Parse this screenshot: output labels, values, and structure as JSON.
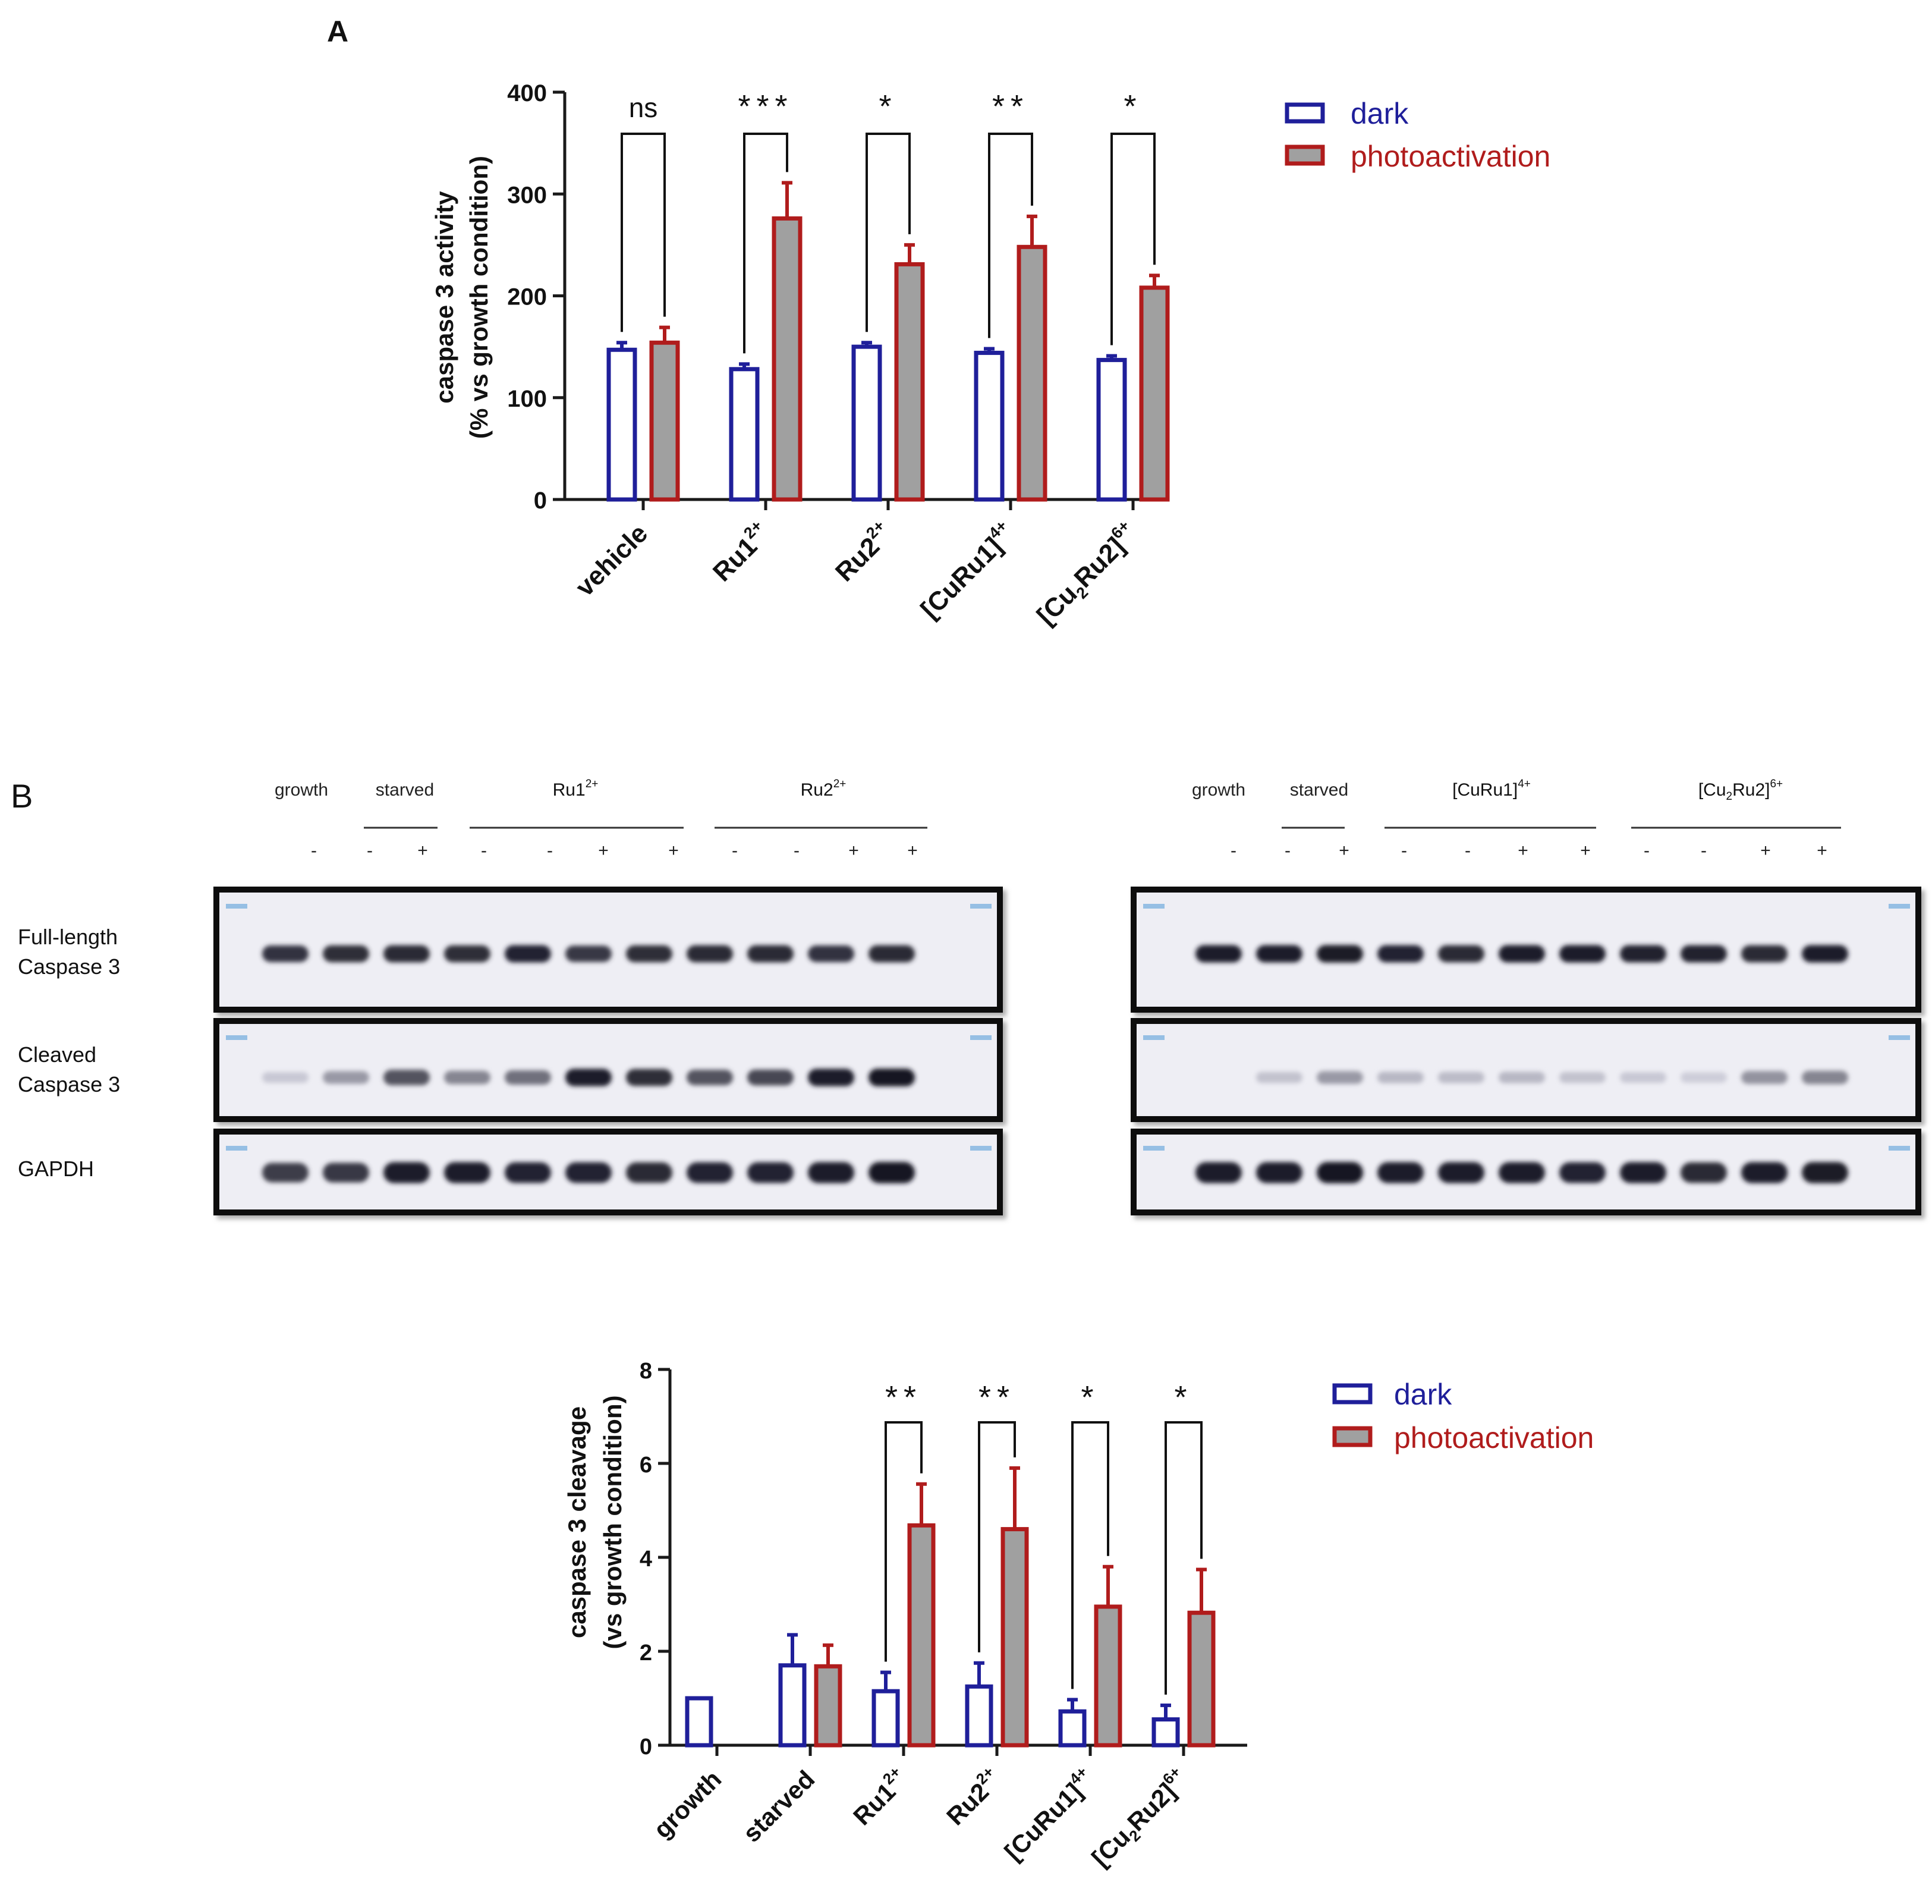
{
  "panel_a_label": "A",
  "panel_b_label": "B",
  "colors": {
    "dark": "#1f1f9a",
    "photo": "#b01c1c",
    "photo_fill": "#a0a0a0",
    "dark_text": "#1f1f9a",
    "photo_text": "#b01c1c",
    "axis": "#1a1a1a"
  },
  "legend": {
    "dark": "dark",
    "photo": "photoactivation"
  },
  "chart_data": [
    {
      "type": "bar",
      "ylabel_line1": "caspase 3 activity",
      "ylabel_line2": "(% vs growth condition)",
      "ylim": [
        0,
        400
      ],
      "yticks": [
        "0",
        "100",
        "200",
        "300",
        "400"
      ],
      "categories": [
        {
          "base": "vehicle",
          "sub": "",
          "sup": "",
          "after": ""
        },
        {
          "base": "Ru1",
          "sub": "",
          "sup": "2+",
          "after": ""
        },
        {
          "base": "Ru2",
          "sub": "",
          "sup": "2+",
          "after": ""
        },
        {
          "base": "[CuRu1]",
          "sub": "",
          "sup": "4+",
          "after": ""
        },
        {
          "base": "[Cu",
          "sub": "2",
          "sup": "6+",
          "after": "Ru2]"
        }
      ],
      "series": [
        {
          "name": "dark",
          "values": [
            147,
            128,
            150,
            144,
            137
          ],
          "errors": [
            7,
            5,
            4,
            4,
            4
          ]
        },
        {
          "name": "photoactivation",
          "values": [
            154,
            276,
            231,
            248,
            208
          ],
          "errors": [
            15,
            35,
            19,
            30,
            12
          ]
        }
      ],
      "significance": [
        "ns",
        "***",
        "*",
        "**",
        "*"
      ],
      "legend_position": "top-right",
      "grid": false
    },
    {
      "type": "bar",
      "ylabel_line1": "caspase 3 cleavage",
      "ylabel_line2": "(vs growth condition)",
      "ylim": [
        0,
        8
      ],
      "yticks": [
        "0",
        "2",
        "4",
        "6",
        "8"
      ],
      "categories": [
        {
          "base": "growth",
          "sub": "",
          "sup": "",
          "after": ""
        },
        {
          "base": "starved",
          "sub": "",
          "sup": "",
          "after": ""
        },
        {
          "base": "Ru1",
          "sub": "",
          "sup": "2+",
          "after": ""
        },
        {
          "base": "Ru2",
          "sub": "",
          "sup": "2+",
          "after": ""
        },
        {
          "base": "[CuRu1]",
          "sub": "",
          "sup": "4+",
          "after": ""
        },
        {
          "base": "[Cu",
          "sub": "2",
          "sup": "6+",
          "after": "Ru2]"
        }
      ],
      "series": [
        {
          "name": "dark",
          "values": [
            1.0,
            1.7,
            1.15,
            1.25,
            0.72,
            0.55
          ],
          "errors": [
            0,
            0.65,
            0.4,
            0.5,
            0.25,
            0.3
          ]
        },
        {
          "name": "photoactivation",
          "values": [
            null,
            1.68,
            4.68,
            4.6,
            2.95,
            2.82
          ],
          "errors": [
            0,
            0.45,
            0.88,
            1.3,
            0.85,
            0.92
          ]
        }
      ],
      "significance": [
        "",
        "",
        "**",
        "**",
        "*",
        "*"
      ],
      "legend_position": "top-right",
      "grid": false
    }
  ],
  "blot": {
    "row_labels": {
      "full_line1": "Full-length",
      "full_line2": "Caspase 3",
      "cleaved_line1": "Cleaved",
      "cleaved_line2": "Caspase 3",
      "gapdh": "GAPDH"
    },
    "left": {
      "header_growth": "growth",
      "header_starved": "starved",
      "header_g3": {
        "base": "Ru1",
        "sub": "",
        "sup": "2+",
        "after": ""
      },
      "header_g4": {
        "base": "Ru2",
        "sub": "",
        "sup": "2+",
        "after": ""
      },
      "signs": [
        "-",
        "-",
        "+",
        "-",
        "-",
        "+",
        "+",
        "-",
        "-",
        "+",
        "+"
      ],
      "full_intensity": [
        0.85,
        0.88,
        0.9,
        0.88,
        0.92,
        0.82,
        0.88,
        0.9,
        0.9,
        0.85,
        0.9
      ],
      "cleaved_intensity": [
        0.12,
        0.35,
        0.7,
        0.45,
        0.55,
        0.95,
        0.88,
        0.7,
        0.75,
        0.95,
        0.98
      ],
      "gapdh_intensity": [
        0.8,
        0.82,
        0.95,
        0.95,
        0.92,
        0.92,
        0.9,
        0.92,
        0.92,
        0.95,
        0.98
      ]
    },
    "right": {
      "header_growth": "growth",
      "header_starved": "starved",
      "header_g3": {
        "base": "[CuRu1]",
        "sub": "",
        "sup": "4+",
        "after": ""
      },
      "header_g4": {
        "base": "[Cu",
        "sub": "2",
        "sup": "6+",
        "after": "Ru2]"
      },
      "signs": [
        "-",
        "-",
        "+",
        "-",
        "-",
        "+",
        "+",
        "-",
        "-",
        "+",
        "+"
      ],
      "full_intensity": [
        0.95,
        0.95,
        0.97,
        0.92,
        0.9,
        0.95,
        0.95,
        0.93,
        0.93,
        0.9,
        0.95
      ],
      "cleaved_intensity": [
        0.0,
        0.15,
        0.35,
        0.2,
        0.18,
        0.2,
        0.15,
        0.12,
        0.1,
        0.38,
        0.45
      ],
      "gapdh_intensity": [
        0.95,
        0.95,
        0.98,
        0.95,
        0.95,
        0.95,
        0.92,
        0.95,
        0.9,
        0.95,
        0.97
      ]
    }
  }
}
